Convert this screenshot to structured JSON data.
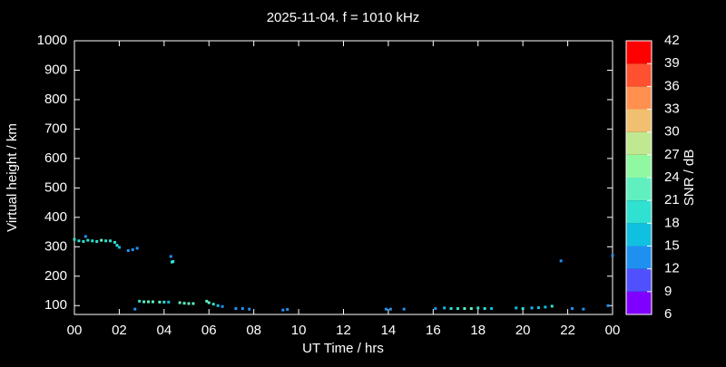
{
  "chart_data": {
    "type": "scatter",
    "title": "2025-11-04. f = 1010 kHz",
    "x_label": "UT Time / hrs",
    "y_label": "Virtual height / km",
    "colorbar_label": "SNR / dB",
    "x": [
      0.0,
      0.2,
      0.4,
      0.5,
      0.6,
      0.8,
      1.0,
      1.2,
      1.4,
      1.6,
      1.8,
      1.9,
      2.0,
      2.4,
      2.6,
      2.8,
      4.3,
      4.35,
      4.4,
      2.7,
      2.9,
      3.1,
      3.3,
      3.5,
      3.8,
      4.0,
      4.2,
      4.7,
      4.9,
      5.1,
      5.3,
      5.9,
      6.0,
      6.2,
      6.4,
      6.6,
      7.2,
      7.5,
      7.8,
      9.3,
      9.5,
      13.9,
      14.1,
      14.7,
      16.1,
      16.5,
      16.8,
      17.1,
      17.4,
      17.7,
      18.0,
      18.3,
      18.6,
      19.7,
      20.0,
      20.4,
      20.7,
      21.0,
      21.3,
      21.7,
      22.2,
      22.7,
      23.8,
      24.0
    ],
    "values": [
      325,
      320,
      318,
      335,
      322,
      320,
      318,
      322,
      320,
      320,
      315,
      305,
      298,
      287,
      290,
      295,
      267,
      248,
      250,
      88,
      115,
      113,
      113,
      113,
      112,
      112,
      112,
      110,
      108,
      107,
      107,
      115,
      110,
      105,
      100,
      97,
      90,
      90,
      88,
      85,
      87,
      88,
      88,
      88,
      90,
      92,
      90,
      90,
      90,
      90,
      92,
      90,
      90,
      92,
      90,
      92,
      93,
      95,
      98,
      252,
      90,
      88,
      100,
      270
    ],
    "snr": [
      19,
      18,
      19,
      14,
      20,
      19,
      20,
      21,
      20,
      20,
      19,
      18,
      16,
      14,
      14,
      14,
      13,
      20,
      19,
      13,
      20,
      21,
      22,
      21,
      21,
      20,
      16,
      22,
      22,
      21,
      22,
      22,
      21,
      20,
      16,
      14,
      13,
      13,
      13,
      13,
      13,
      13,
      13,
      13,
      14,
      16,
      19,
      20,
      21,
      21,
      19,
      18,
      16,
      16,
      19,
      16,
      16,
      16,
      18,
      13,
      13,
      13,
      14,
      13
    ],
    "xlim": [
      0,
      24
    ],
    "ylim": [
      70,
      1000
    ],
    "xticks": [
      {
        "value": 0,
        "label": "00"
      },
      {
        "value": 2,
        "label": "02"
      },
      {
        "value": 4,
        "label": "04"
      },
      {
        "value": 6,
        "label": "06"
      },
      {
        "value": 8,
        "label": "08"
      },
      10,
      12,
      14,
      16,
      18,
      20,
      22,
      {
        "value": 24,
        "label": "00"
      }
    ],
    "yticks": [
      100,
      200,
      300,
      400,
      500,
      600,
      700,
      800,
      900,
      1000
    ],
    "clim": [
      6,
      42
    ],
    "cticks": [
      6,
      9,
      12,
      15,
      18,
      21,
      24,
      27,
      30,
      33,
      36,
      39,
      42
    ],
    "colors": [
      "#8000ff",
      "#5050ff",
      "#2090f0",
      "#10c0e0",
      "#30e0d0",
      "#60f0c0",
      "#90f8a0",
      "#c0e890",
      "#f0c070",
      "#ff9050",
      "#ff5030",
      "#ff0000"
    ]
  }
}
